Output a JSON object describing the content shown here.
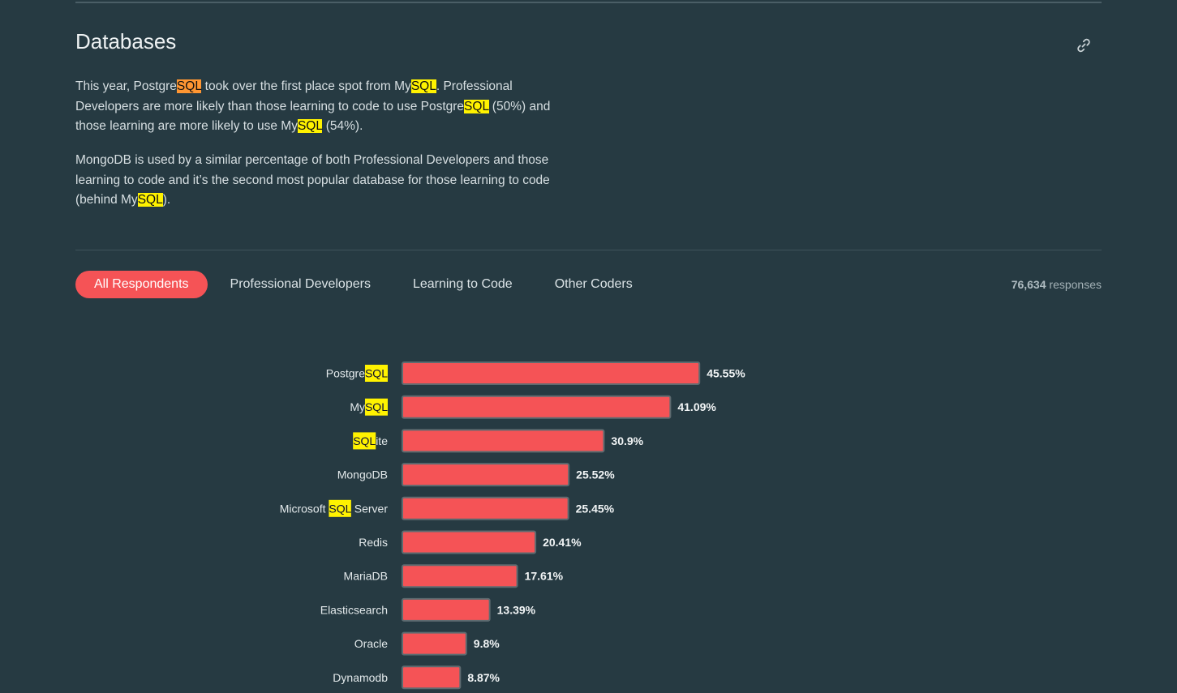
{
  "section": {
    "title": "Databases",
    "link_icon": "link-icon"
  },
  "paragraphs": {
    "p1": [
      {
        "t": "This year, Postgre"
      },
      {
        "t": "SQL",
        "mark": "current"
      },
      {
        "t": " took over the first place spot from My"
      },
      {
        "t": "SQL",
        "mark": "match"
      },
      {
        "t": ". Professional Developers are more likely than those learning to code to use Postgre"
      },
      {
        "t": "SQL",
        "mark": "match"
      },
      {
        "t": " (50%) and those learning are more likely to use My"
      },
      {
        "t": "SQL",
        "mark": "match"
      },
      {
        "t": " (54%)."
      }
    ],
    "p2": [
      {
        "t": "MongoDB is used by a similar percentage of both Professional Developers and those learning to code and it’s the second most popular database for those learning to code (behind My"
      },
      {
        "t": "SQL",
        "mark": "match"
      },
      {
        "t": ")."
      }
    ]
  },
  "tabs": [
    {
      "label": "All Respondents",
      "active": true
    },
    {
      "label": "Professional Developers",
      "active": false
    },
    {
      "label": "Learning to Code",
      "active": false
    },
    {
      "label": "Other Coders",
      "active": false
    }
  ],
  "responses": {
    "count": "76,634",
    "label": " responses"
  },
  "highlight_term": "SQL",
  "colors": {
    "background": "#263a42",
    "bar": "#f55356",
    "bar_border": "#5e6b70",
    "highlight": "#fff200",
    "current_highlight": "#ff9632"
  },
  "chart_data": {
    "type": "bar",
    "orientation": "horizontal",
    "categories": [
      "PostgreSQL",
      "MySQL",
      "SQLite",
      "MongoDB",
      "Microsoft SQL Server",
      "Redis",
      "MariaDB",
      "Elasticsearch",
      "Oracle",
      "Dynamodb"
    ],
    "values": [
      45.55,
      41.09,
      30.9,
      25.52,
      25.45,
      20.41,
      17.61,
      13.39,
      9.8,
      8.87
    ],
    "value_labels": [
      "45.55%",
      "41.09%",
      "30.9%",
      "25.52%",
      "25.45%",
      "20.41%",
      "17.61%",
      "13.39%",
      "9.8%",
      "8.87%"
    ],
    "unit": "%",
    "xlim": [
      0,
      100
    ],
    "title": "",
    "xlabel": "",
    "ylabel": ""
  }
}
